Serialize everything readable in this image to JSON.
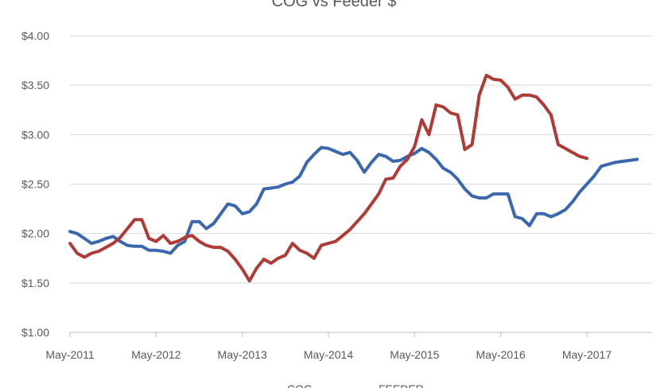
{
  "chart_data": {
    "type": "line",
    "title": "COG vs Feeder $",
    "xlabel": "",
    "ylabel": "",
    "y_ticks": [
      "$1.00",
      "$1.50",
      "$2.00",
      "$2.50",
      "$3.00",
      "$3.50",
      "$4.00"
    ],
    "ylim": [
      1.0,
      4.0
    ],
    "x_ticks": [
      "May-2011",
      "May-2012",
      "May-2013",
      "May-2014",
      "May-2015",
      "May-2016",
      "May-2017"
    ],
    "x_tick_dates": [
      "2011-05",
      "2012-05",
      "2013-05",
      "2014-05",
      "2015-05",
      "2016-05",
      "2017-05"
    ],
    "xlim": [
      "2011-05",
      "2017-12"
    ],
    "grid": "horizontal",
    "legend_position": "bottom",
    "series": [
      {
        "name": "COG",
        "color": "#3A67AE",
        "points": [
          [
            "2011-05",
            2.02
          ],
          [
            "2011-06",
            2.0
          ],
          [
            "2011-07",
            1.95
          ],
          [
            "2011-08",
            1.9
          ],
          [
            "2011-09",
            1.92
          ],
          [
            "2011-10",
            1.95
          ],
          [
            "2011-11",
            1.97
          ],
          [
            "2011-12",
            1.92
          ],
          [
            "2012-01",
            1.88
          ],
          [
            "2012-02",
            1.87
          ],
          [
            "2012-03",
            1.87
          ],
          [
            "2012-04",
            1.83
          ],
          [
            "2012-05",
            1.83
          ],
          [
            "2012-06",
            1.82
          ],
          [
            "2012-07",
            1.8
          ],
          [
            "2012-08",
            1.88
          ],
          [
            "2012-09",
            1.92
          ],
          [
            "2012-10",
            2.12
          ],
          [
            "2012-11",
            2.12
          ],
          [
            "2012-12",
            2.05
          ],
          [
            "2013-01",
            2.1
          ],
          [
            "2013-02",
            2.2
          ],
          [
            "2013-03",
            2.3
          ],
          [
            "2013-04",
            2.28
          ],
          [
            "2013-05",
            2.2
          ],
          [
            "2013-06",
            2.22
          ],
          [
            "2013-07",
            2.3
          ],
          [
            "2013-08",
            2.45
          ],
          [
            "2013-09",
            2.46
          ],
          [
            "2013-10",
            2.47
          ],
          [
            "2013-11",
            2.5
          ],
          [
            "2013-12",
            2.52
          ],
          [
            "2014-01",
            2.58
          ],
          [
            "2014-02",
            2.72
          ],
          [
            "2014-03",
            2.8
          ],
          [
            "2014-04",
            2.87
          ],
          [
            "2014-05",
            2.86
          ],
          [
            "2014-06",
            2.83
          ],
          [
            "2014-07",
            2.8
          ],
          [
            "2014-08",
            2.82
          ],
          [
            "2014-09",
            2.74
          ],
          [
            "2014-10",
            2.62
          ],
          [
            "2014-11",
            2.72
          ],
          [
            "2014-12",
            2.8
          ],
          [
            "2015-01",
            2.78
          ],
          [
            "2015-02",
            2.73
          ],
          [
            "2015-03",
            2.74
          ],
          [
            "2015-04",
            2.78
          ],
          [
            "2015-05",
            2.81
          ],
          [
            "2015-06",
            2.86
          ],
          [
            "2015-07",
            2.82
          ],
          [
            "2015-08",
            2.75
          ],
          [
            "2015-09",
            2.66
          ],
          [
            "2015-10",
            2.62
          ],
          [
            "2015-11",
            2.55
          ],
          [
            "2015-12",
            2.45
          ],
          [
            "2016-01",
            2.38
          ],
          [
            "2016-02",
            2.36
          ],
          [
            "2016-03",
            2.36
          ],
          [
            "2016-04",
            2.4
          ],
          [
            "2016-05",
            2.4
          ],
          [
            "2016-06",
            2.4
          ],
          [
            "2016-07",
            2.17
          ],
          [
            "2016-08",
            2.15
          ],
          [
            "2016-09",
            2.08
          ],
          [
            "2016-10",
            2.2
          ],
          [
            "2016-11",
            2.2
          ],
          [
            "2016-12",
            2.17
          ],
          [
            "2017-01",
            2.2
          ],
          [
            "2017-02",
            2.24
          ],
          [
            "2017-03",
            2.32
          ],
          [
            "2017-04",
            2.42
          ],
          [
            "2017-05",
            2.5
          ],
          [
            "2017-06",
            2.58
          ],
          [
            "2017-07",
            2.68
          ],
          [
            "2017-08",
            2.7
          ],
          [
            "2017-09",
            2.72
          ],
          [
            "2017-10",
            2.73
          ],
          [
            "2017-11",
            2.74
          ],
          [
            "2017-12",
            2.75
          ]
        ]
      },
      {
        "name": "FEEDER",
        "color": "#B03A36",
        "points": [
          [
            "2011-05",
            1.9
          ],
          [
            "2011-06",
            1.8
          ],
          [
            "2011-07",
            1.76
          ],
          [
            "2011-08",
            1.8
          ],
          [
            "2011-09",
            1.82
          ],
          [
            "2011-10",
            1.86
          ],
          [
            "2011-11",
            1.9
          ],
          [
            "2011-12",
            1.96
          ],
          [
            "2012-01",
            2.05
          ],
          [
            "2012-02",
            2.14
          ],
          [
            "2012-03",
            2.14
          ],
          [
            "2012-04",
            1.95
          ],
          [
            "2012-05",
            1.92
          ],
          [
            "2012-06",
            1.98
          ],
          [
            "2012-07",
            1.9
          ],
          [
            "2012-08",
            1.92
          ],
          [
            "2012-09",
            1.96
          ],
          [
            "2012-10",
            1.98
          ],
          [
            "2012-11",
            1.92
          ],
          [
            "2012-12",
            1.88
          ],
          [
            "2013-01",
            1.86
          ],
          [
            "2013-02",
            1.86
          ],
          [
            "2013-03",
            1.82
          ],
          [
            "2013-04",
            1.74
          ],
          [
            "2013-05",
            1.64
          ],
          [
            "2013-06",
            1.52
          ],
          [
            "2013-07",
            1.65
          ],
          [
            "2013-08",
            1.74
          ],
          [
            "2013-09",
            1.7
          ],
          [
            "2013-10",
            1.75
          ],
          [
            "2013-11",
            1.78
          ],
          [
            "2013-12",
            1.9
          ],
          [
            "2014-01",
            1.83
          ],
          [
            "2014-02",
            1.8
          ],
          [
            "2014-03",
            1.75
          ],
          [
            "2014-04",
            1.88
          ],
          [
            "2014-05",
            1.9
          ],
          [
            "2014-06",
            1.92
          ],
          [
            "2014-07",
            1.98
          ],
          [
            "2014-08",
            2.04
          ],
          [
            "2014-09",
            2.12
          ],
          [
            "2014-10",
            2.2
          ],
          [
            "2014-11",
            2.3
          ],
          [
            "2014-12",
            2.4
          ],
          [
            "2015-01",
            2.55
          ],
          [
            "2015-02",
            2.56
          ],
          [
            "2015-03",
            2.68
          ],
          [
            "2015-04",
            2.75
          ],
          [
            "2015-05",
            2.88
          ],
          [
            "2015-06",
            3.15
          ],
          [
            "2015-07",
            3.0
          ],
          [
            "2015-08",
            3.3
          ],
          [
            "2015-09",
            3.28
          ],
          [
            "2015-10",
            3.22
          ],
          [
            "2015-11",
            3.2
          ],
          [
            "2015-12",
            2.85
          ],
          [
            "2016-01",
            2.9
          ],
          [
            "2016-02",
            3.4
          ],
          [
            "2016-03",
            3.6
          ],
          [
            "2016-04",
            3.56
          ],
          [
            "2016-05",
            3.55
          ],
          [
            "2016-06",
            3.48
          ],
          [
            "2016-07",
            3.36
          ],
          [
            "2016-08",
            3.4
          ],
          [
            "2016-09",
            3.4
          ],
          [
            "2016-10",
            3.38
          ],
          [
            "2016-11",
            3.3
          ],
          [
            "2016-12",
            3.2
          ],
          [
            "2017-01",
            2.9
          ],
          [
            "2017-02",
            2.86
          ],
          [
            "2017-03",
            2.82
          ],
          [
            "2017-04",
            2.78
          ],
          [
            "2017-05",
            2.76
          ]
        ]
      }
    ]
  }
}
